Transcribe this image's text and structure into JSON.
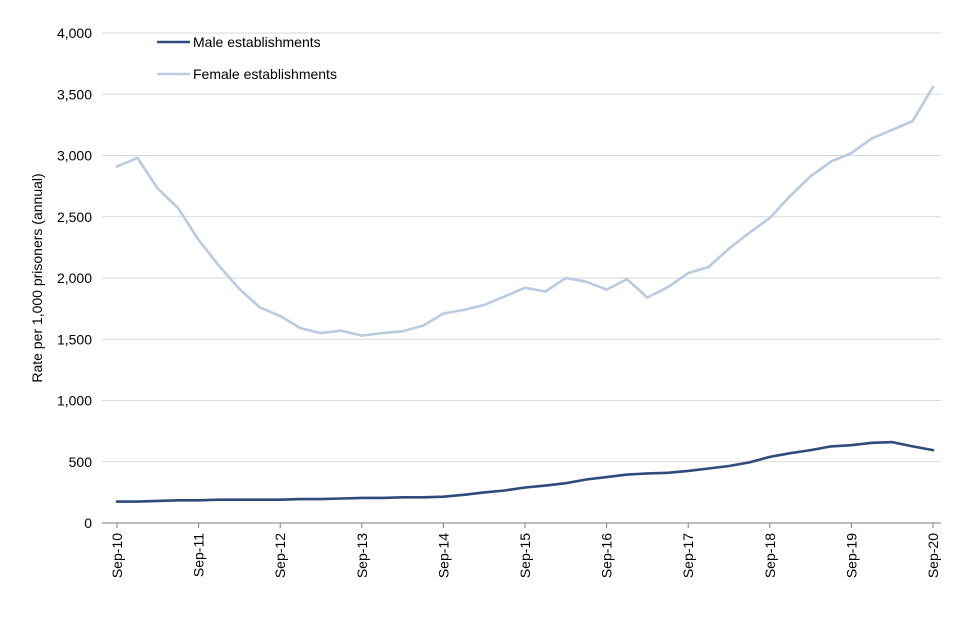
{
  "chart_data": {
    "type": "line",
    "title": "",
    "xlabel": "",
    "ylabel": "Rate per 1,000 prisoners (annual)",
    "ylim": [
      0,
      4000
    ],
    "yticks": [
      0,
      500,
      1000,
      1500,
      2000,
      2500,
      3000,
      3500,
      4000
    ],
    "ytick_labels": [
      "0",
      "500",
      "1,000",
      "1,500",
      "2,000",
      "2,500",
      "3,000",
      "3,500",
      "4,000"
    ],
    "x_tick_labels": [
      "Sep-10",
      "Sep-11",
      "Sep-12",
      "Sep-13",
      "Sep-14",
      "Sep-15",
      "Sep-16",
      "Sep-17",
      "Sep-18",
      "Sep-19",
      "Sep-20"
    ],
    "x_tick_every": 4,
    "grid": "horizontal",
    "legend": "top-left",
    "series": [
      {
        "name": "Male establishments",
        "color": "#2f4b7c",
        "values": [
          175,
          175,
          180,
          185,
          185,
          190,
          190,
          190,
          190,
          195,
          195,
          200,
          205,
          205,
          210,
          210,
          215,
          230,
          250,
          265,
          290,
          305,
          325,
          355,
          375,
          395,
          405,
          410,
          425,
          445,
          465,
          495,
          540,
          570,
          595,
          625,
          635,
          655,
          660,
          625,
          595
        ]
      },
      {
        "name": "Female establishments",
        "color": "#b9cbe0",
        "values": [
          2910,
          2980,
          2730,
          2570,
          2310,
          2100,
          1910,
          1760,
          1690,
          1590,
          1550,
          1570,
          1530,
          1550,
          1565,
          1610,
          1710,
          1740,
          1780,
          1850,
          1920,
          1890,
          2000,
          1970,
          1905,
          1990,
          1840,
          1925,
          2040,
          2090,
          2240,
          2370,
          2490,
          2670,
          2830,
          2950,
          3020,
          3140,
          3210,
          3280,
          3560
        ]
      }
    ]
  }
}
